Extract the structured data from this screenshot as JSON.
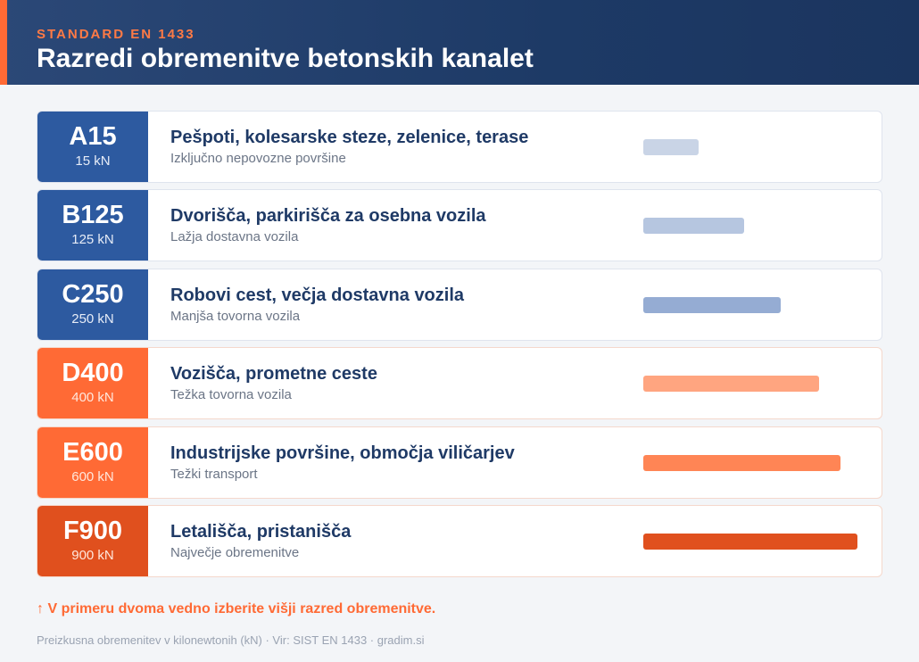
{
  "header": {
    "eyebrow": "STANDARD EN 1433",
    "title": "Razredi obremenitve betonskih kanalet",
    "accent_color": "#ff6a35"
  },
  "classes": [
    {
      "code": "A15",
      "load": "15 kN",
      "use": "Pešpoti, kolesarske steze, zelenice, terase",
      "note": "Izključno nepovozne površine",
      "bar_fraction": 0.26,
      "badge_color": "#2d5aa0",
      "bar_color": "#c9d4e6"
    },
    {
      "code": "B125",
      "load": "125 kN",
      "use": "Dvorišča, parkirišča za osebna vozila",
      "note": "Lažja dostavna vozila",
      "bar_fraction": 0.47,
      "badge_color": "#2d5aa0",
      "bar_color": "#b6c6e0"
    },
    {
      "code": "C250",
      "load": "250 kN",
      "use": "Robovi cest, večja dostavna vozila",
      "note": "Manjša tovorna vozila",
      "bar_fraction": 0.64,
      "badge_color": "#2d5aa0",
      "bar_color": "#95acd3"
    },
    {
      "code": "D400",
      "load": "400 kN",
      "use": "Vozišča, prometne ceste",
      "note": "Težka tovorna vozila",
      "bar_fraction": 0.82,
      "badge_color": "#ff6a35",
      "bar_color": "#ffa580"
    },
    {
      "code": "E600",
      "load": "600 kN",
      "use": "Industrijske površine, območja viličarjev",
      "note": "Težki transport",
      "bar_fraction": 0.92,
      "badge_color": "#ff6a35",
      "bar_color": "#ff8555"
    },
    {
      "code": "F900",
      "load": "900 kN",
      "use": "Letališča, pristanišča",
      "note": "Največje obremenitve",
      "bar_fraction": 1.0,
      "badge_color": "#e0501e",
      "bar_color": "#e0501e"
    }
  ],
  "advice": "↑ V primeru dvoma vedno izberite višji razred obremenitve.",
  "footer": "Preizkusna obremenitev v kilonewtonih (kN) · Vir: SIST EN 1433 · gradim.si"
}
